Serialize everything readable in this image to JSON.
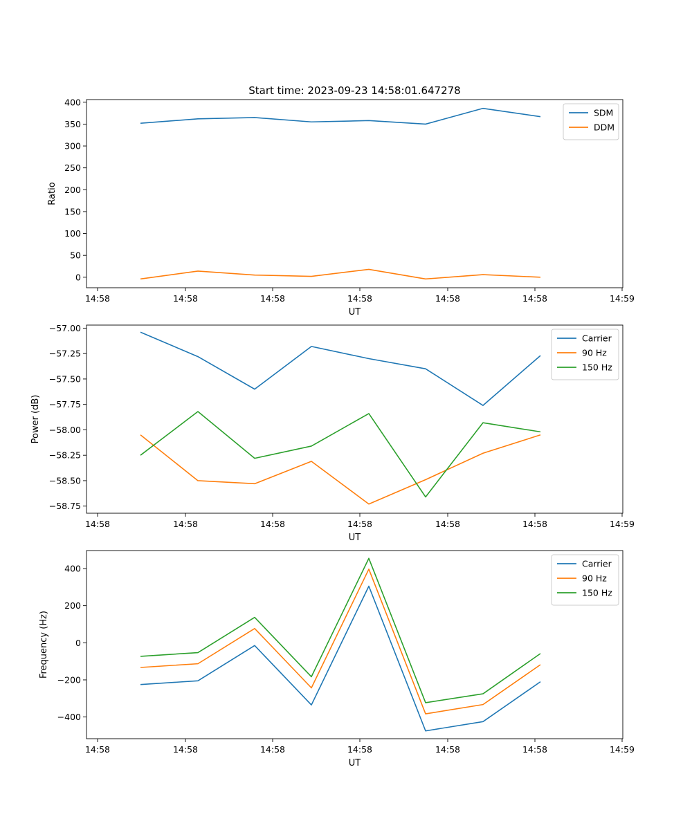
{
  "title": "Start time: 2023-09-23 14:58:01.647278",
  "colors": {
    "blue": "#1f77b4",
    "orange": "#ff7f0e",
    "green": "#2ca02c"
  },
  "chart_data": [
    {
      "type": "line",
      "xlabel": "UT",
      "ylabel": "Ratio",
      "x_tick_labels": [
        "14:58",
        "14:58",
        "14:58",
        "14:58",
        "14:58",
        "14:58",
        "14:59"
      ],
      "y_ticks": [
        0,
        50,
        100,
        150,
        200,
        250,
        300,
        350,
        400
      ],
      "ylim": [
        -24,
        406
      ],
      "legend": "top-right",
      "series": [
        {
          "name": "SDM",
          "color": "#1f77b4",
          "values": [
            352,
            362,
            365,
            355,
            358,
            350,
            386,
            367
          ]
        },
        {
          "name": "DDM",
          "color": "#ff7f0e",
          "values": [
            -4,
            14,
            5,
            2,
            18,
            -4,
            6,
            0
          ]
        }
      ]
    },
    {
      "type": "line",
      "xlabel": "UT",
      "ylabel": "Power (dB)",
      "x_tick_labels": [
        "14:58",
        "14:58",
        "14:58",
        "14:58",
        "14:58",
        "14:58",
        "14:59"
      ],
      "y_ticks": [
        -58.75,
        -58.5,
        -58.25,
        -58.0,
        -57.75,
        -57.5,
        -57.25,
        -57.0
      ],
      "y_tick_labels": [
        "−58.75",
        "−58.50",
        "−58.25",
        "−58.00",
        "−57.75",
        "−57.50",
        "−57.25",
        "−57.00"
      ],
      "ylim": [
        -58.82,
        -56.97
      ],
      "legend": "top-right",
      "series": [
        {
          "name": "Carrier",
          "color": "#1f77b4",
          "values": [
            -57.04,
            -57.28,
            -57.6,
            -57.18,
            -57.3,
            -57.4,
            -57.76,
            -57.27
          ]
        },
        {
          "name": "90 Hz",
          "color": "#ff7f0e",
          "values": [
            -58.05,
            -58.5,
            -58.53,
            -58.31,
            -58.73,
            -58.49,
            -58.23,
            -58.05
          ]
        },
        {
          "name": "150 Hz",
          "color": "#2ca02c",
          "values": [
            -58.25,
            -57.82,
            -58.28,
            -58.16,
            -57.84,
            -58.66,
            -57.93,
            -58.02
          ]
        }
      ]
    },
    {
      "type": "line",
      "xlabel": "UT",
      "ylabel": "Frequency (Hz)",
      "x_tick_labels": [
        "14:58",
        "14:58",
        "14:58",
        "14:58",
        "14:58",
        "14:58",
        "14:59"
      ],
      "y_ticks": [
        -400,
        -200,
        0,
        200,
        400
      ],
      "y_tick_labels": [
        "−400",
        "−200",
        "0",
        "200",
        "400"
      ],
      "ylim": [
        -517,
        497
      ],
      "legend": "top-right",
      "series": [
        {
          "name": "Carrier",
          "color": "#1f77b4",
          "values": [
            -225,
            -205,
            -15,
            -335,
            305,
            -475,
            -425,
            -210
          ]
        },
        {
          "name": "90 Hz",
          "color": "#ff7f0e",
          "values": [
            -133,
            -113,
            77,
            -243,
            397,
            -383,
            -333,
            -118
          ]
        },
        {
          "name": "150 Hz",
          "color": "#2ca02c",
          "values": [
            -73,
            -53,
            137,
            -183,
            455,
            -323,
            -275,
            -58
          ]
        }
      ]
    }
  ]
}
